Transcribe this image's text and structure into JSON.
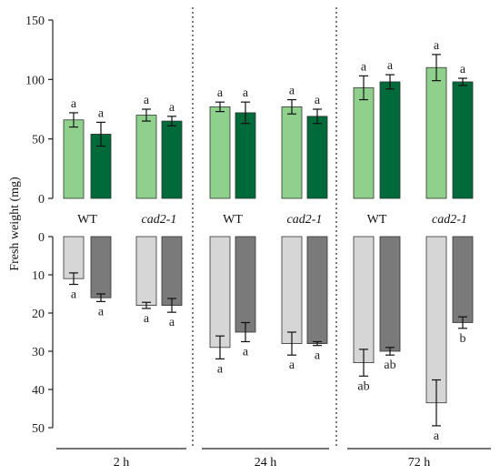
{
  "chart_data": {
    "type": "bar",
    "ylabel": "Fresh weight (mg)",
    "top_axis": {
      "ylim": [
        0,
        150
      ],
      "ticks": [
        0,
        50,
        100,
        150
      ]
    },
    "bottom_axis": {
      "ylim": [
        0,
        50
      ],
      "ticks": [
        0,
        10,
        20,
        30,
        40,
        50
      ],
      "inverted": true
    },
    "time_points": [
      "2 h",
      "24 h",
      "72 h"
    ],
    "genotype_labels": [
      [
        "WT",
        "cad2-1"
      ],
      [
        "WT",
        "cad2-1"
      ],
      [
        "WT",
        "cad2-1"
      ]
    ],
    "colors": {
      "top_light": "#8fd18c",
      "top_dark": "#006a3a",
      "bottom_light": "#d6d6d6",
      "bottom_dark": "#7a7a7a"
    },
    "top_series": [
      {
        "values": [
          66,
          54,
          70,
          65,
          77,
          72,
          77,
          69,
          93,
          98,
          110,
          98
        ],
        "errors": [
          6,
          10,
          5,
          4,
          4,
          9,
          6,
          6,
          10,
          6,
          11,
          3
        ],
        "labels": [
          "a",
          "a",
          "a",
          "a",
          "a",
          "a",
          "a",
          "a",
          "a",
          "a",
          "a",
          "a"
        ]
      }
    ],
    "bottom_series": [
      {
        "values": [
          11,
          16,
          18,
          18,
          29,
          25,
          28,
          28,
          33,
          30,
          43.5,
          22.5
        ],
        "errors": [
          1.5,
          1,
          0.8,
          1.8,
          3,
          2.5,
          3,
          0.5,
          3.5,
          1,
          6,
          1.5
        ],
        "labels": [
          "a",
          "a",
          "a",
          "a",
          "a",
          "a",
          "a",
          "a",
          "ab",
          "ab",
          "a",
          "b"
        ]
      }
    ]
  }
}
